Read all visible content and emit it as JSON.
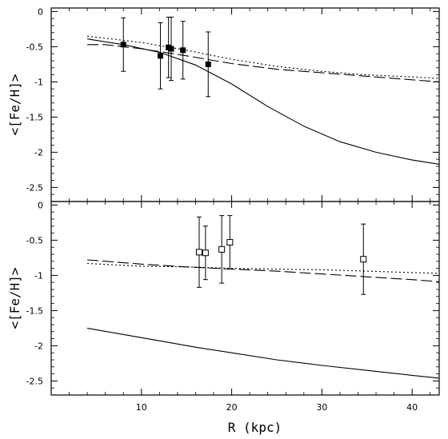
{
  "chart_data": [
    {
      "type": "scatter",
      "panel": "top",
      "ylabel": "<[Fe/H]>",
      "xlabel": "",
      "xlim": [
        0,
        43
      ],
      "ylim": [
        -2.7,
        0.05
      ],
      "yticks": [
        "0",
        "-0.5",
        "-1",
        "-1.5",
        "-2",
        "-2.5"
      ],
      "ytick_values": [
        0,
        -0.5,
        -1,
        -1.5,
        -2,
        -2.5
      ],
      "xticks": [
        "10",
        "20",
        "30",
        "40"
      ],
      "xtick_values": [
        10,
        20,
        30,
        40
      ],
      "points": {
        "marker": "filled-square",
        "x": [
          8.0,
          12.1,
          13.0,
          13.3,
          14.6,
          17.4
        ],
        "y": [
          -0.47,
          -0.63,
          -0.51,
          -0.53,
          -0.55,
          -0.75
        ],
        "yerr": [
          0.38,
          0.47,
          0.43,
          0.45,
          0.41,
          0.46
        ]
      },
      "series": [
        {
          "style": "solid",
          "x": [
            4,
            8,
            12,
            16,
            20,
            24,
            28,
            32,
            36,
            40,
            43
          ],
          "y": [
            -0.39,
            -0.47,
            -0.58,
            -0.76,
            -1.03,
            -1.35,
            -1.63,
            -1.85,
            -2.0,
            -2.11,
            -2.17
          ]
        },
        {
          "style": "dashed",
          "x": [
            4,
            6,
            10,
            15,
            20,
            25,
            30,
            35,
            40,
            43
          ],
          "y": [
            -0.47,
            -0.47,
            -0.53,
            -0.63,
            -0.74,
            -0.82,
            -0.87,
            -0.92,
            -0.97,
            -1.0
          ]
        },
        {
          "style": "dotted",
          "x": [
            4,
            10,
            15,
            20,
            25,
            30,
            35,
            40,
            43
          ],
          "y": [
            -0.35,
            -0.44,
            -0.55,
            -0.68,
            -0.78,
            -0.85,
            -0.9,
            -0.93,
            -0.95
          ]
        }
      ]
    },
    {
      "type": "scatter",
      "panel": "bottom",
      "ylabel": "<[Fe/H]>",
      "xlabel": "R (kpc)",
      "xlim": [
        0,
        43
      ],
      "ylim": [
        -2.7,
        0.05
      ],
      "yticks": [
        "0",
        "-0.5",
        "-1",
        "-1.5",
        "-2",
        "-2.5"
      ],
      "ytick_values": [
        0,
        -0.5,
        -1,
        -1.5,
        -2,
        -2.5
      ],
      "xticks": [
        "10",
        "20",
        "30",
        "40"
      ],
      "xtick_values": [
        10,
        20,
        30,
        40
      ],
      "points": {
        "marker": "open-square",
        "x": [
          16.4,
          17.1,
          18.9,
          19.8,
          34.6
        ],
        "y": [
          -0.67,
          -0.68,
          -0.63,
          -0.53,
          -0.77
        ],
        "yerr": [
          0.5,
          0.38,
          0.48,
          0.38,
          0.5
        ]
      },
      "series": [
        {
          "style": "solid",
          "x": [
            4,
            8,
            12,
            16,
            20,
            25,
            30,
            35,
            40,
            43
          ],
          "y": [
            -1.75,
            -1.84,
            -1.93,
            -2.02,
            -2.1,
            -2.2,
            -2.28,
            -2.35,
            -2.42,
            -2.46
          ]
        },
        {
          "style": "dashed",
          "x": [
            4,
            10,
            15,
            20,
            25,
            30,
            35,
            40,
            43
          ],
          "y": [
            -0.78,
            -0.84,
            -0.88,
            -0.91,
            -0.94,
            -0.98,
            -1.02,
            -1.06,
            -1.09
          ]
        },
        {
          "style": "dotted",
          "x": [
            4,
            10,
            15,
            20,
            25,
            30,
            35,
            40,
            43
          ],
          "y": [
            -0.83,
            -0.87,
            -0.88,
            -0.9,
            -0.91,
            -0.92,
            -0.94,
            -0.96,
            -0.97
          ]
        }
      ]
    }
  ]
}
